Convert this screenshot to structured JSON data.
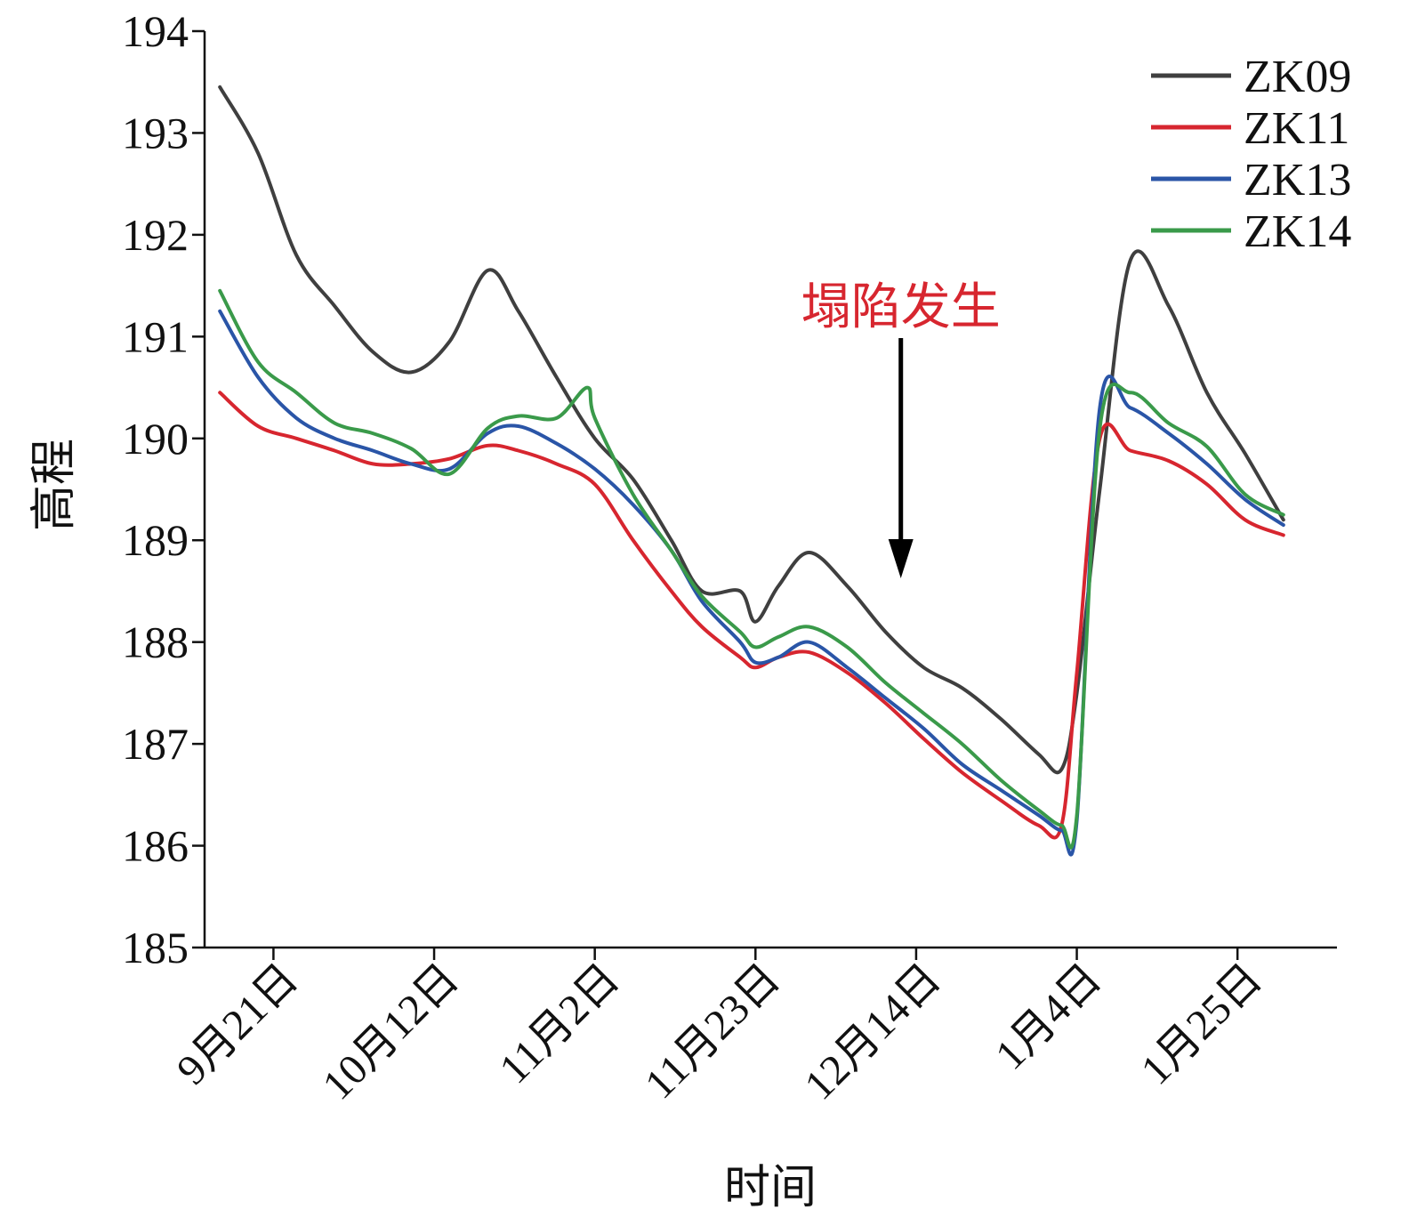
{
  "chart_data": {
    "type": "line",
    "xlabel": "时间",
    "ylabel": "高程",
    "ylim": [
      185,
      194
    ],
    "y_ticks": [
      185,
      186,
      187,
      188,
      189,
      190,
      191,
      192,
      193,
      194
    ],
    "xlim": [
      "2016-09-12",
      "2017-02-07"
    ],
    "x_tick_labels": [
      {
        "date": "2016-09-21",
        "label": "9月21日"
      },
      {
        "date": "2016-10-12",
        "label": "10月12日"
      },
      {
        "date": "2016-11-02",
        "label": "11月2日"
      },
      {
        "date": "2016-11-23",
        "label": "11月23日"
      },
      {
        "date": "2016-12-14",
        "label": "12月14日"
      },
      {
        "date": "2017-01-04",
        "label": "1月4日"
      },
      {
        "date": "2017-01-25",
        "label": "1月25日"
      }
    ],
    "legend_position": "top-right",
    "grid": false,
    "annotation": {
      "text": "塌陷发生",
      "date": "2016-12-12",
      "color": "#d7262f"
    },
    "series": [
      {
        "name": "ZK09",
        "color": "#3f3f3f",
        "x": [
          "2016-09-14",
          "2016-09-19",
          "2016-09-24",
          "2016-09-29",
          "2016-10-04",
          "2016-10-09",
          "2016-10-14",
          "2016-10-19",
          "2016-10-23",
          "2016-10-28",
          "2016-11-02",
          "2016-11-07",
          "2016-11-12",
          "2016-11-16",
          "2016-11-21",
          "2016-11-23",
          "2016-11-26",
          "2016-11-30",
          "2016-12-05",
          "2016-12-10",
          "2016-12-15",
          "2016-12-20",
          "2016-12-25",
          "2016-12-30",
          "2017-01-02",
          "2017-01-04",
          "2017-01-07",
          "2017-01-11",
          "2017-01-16",
          "2017-01-21",
          "2017-01-26",
          "2017-01-31"
        ],
        "y": [
          193.45,
          192.8,
          191.8,
          191.3,
          190.85,
          190.65,
          190.95,
          191.65,
          191.25,
          190.6,
          190.0,
          189.6,
          189.0,
          188.5,
          188.5,
          188.2,
          188.55,
          188.88,
          188.55,
          188.1,
          187.75,
          187.55,
          187.25,
          186.9,
          186.75,
          187.5,
          189.5,
          191.75,
          191.3,
          190.45,
          189.85,
          189.2
        ]
      },
      {
        "name": "ZK11",
        "color": "#d7262f",
        "x": [
          "2016-09-14",
          "2016-09-19",
          "2016-09-24",
          "2016-09-29",
          "2016-10-04",
          "2016-10-09",
          "2016-10-14",
          "2016-10-19",
          "2016-10-23",
          "2016-10-28",
          "2016-11-02",
          "2016-11-07",
          "2016-11-12",
          "2016-11-16",
          "2016-11-21",
          "2016-11-23",
          "2016-11-26",
          "2016-11-30",
          "2016-12-05",
          "2016-12-10",
          "2016-12-15",
          "2016-12-20",
          "2016-12-25",
          "2016-12-30",
          "2017-01-02",
          "2017-01-04",
          "2017-01-07",
          "2017-01-11",
          "2017-01-16",
          "2017-01-21",
          "2017-01-26",
          "2017-01-31"
        ],
        "y": [
          190.45,
          190.12,
          190.0,
          189.88,
          189.75,
          189.75,
          189.8,
          189.93,
          189.88,
          189.75,
          189.55,
          189.0,
          188.5,
          188.15,
          187.85,
          187.75,
          187.85,
          187.9,
          187.7,
          187.4,
          187.05,
          186.72,
          186.45,
          186.2,
          186.2,
          187.7,
          190.0,
          189.88,
          189.78,
          189.55,
          189.2,
          189.05
        ]
      },
      {
        "name": "ZK13",
        "color": "#2a55a7",
        "x": [
          "2016-09-14",
          "2016-09-19",
          "2016-09-24",
          "2016-09-29",
          "2016-10-04",
          "2016-10-09",
          "2016-10-14",
          "2016-10-19",
          "2016-10-23",
          "2016-10-28",
          "2016-11-02",
          "2016-11-07",
          "2016-11-12",
          "2016-11-16",
          "2016-11-21",
          "2016-11-23",
          "2016-11-26",
          "2016-11-30",
          "2016-12-05",
          "2016-12-10",
          "2016-12-15",
          "2016-12-20",
          "2016-12-25",
          "2016-12-30",
          "2017-01-02",
          "2017-01-04",
          "2017-01-07",
          "2017-01-11",
          "2017-01-16",
          "2017-01-21",
          "2017-01-26",
          "2017-01-31"
        ],
        "y": [
          191.25,
          190.6,
          190.2,
          190.0,
          189.88,
          189.75,
          189.7,
          190.05,
          190.12,
          189.95,
          189.7,
          189.35,
          188.9,
          188.4,
          188.0,
          187.8,
          187.85,
          188.0,
          187.75,
          187.45,
          187.15,
          186.8,
          186.55,
          186.3,
          186.15,
          186.25,
          190.3,
          190.3,
          190.05,
          189.75,
          189.4,
          189.15
        ]
      },
      {
        "name": "ZK14",
        "color": "#3a9a4a",
        "x": [
          "2016-09-14",
          "2016-09-19",
          "2016-09-24",
          "2016-09-29",
          "2016-10-04",
          "2016-10-09",
          "2016-10-14",
          "2016-10-19",
          "2016-10-23",
          "2016-10-28",
          "2016-11-01",
          "2016-11-02",
          "2016-11-07",
          "2016-11-12",
          "2016-11-16",
          "2016-11-21",
          "2016-11-23",
          "2016-11-26",
          "2016-11-30",
          "2016-12-05",
          "2016-12-10",
          "2016-12-15",
          "2016-12-20",
          "2016-12-25",
          "2016-12-30",
          "2017-01-02",
          "2017-01-04",
          "2017-01-07",
          "2017-01-11",
          "2017-01-16",
          "2017-01-21",
          "2017-01-26",
          "2017-01-31"
        ],
        "y": [
          191.45,
          190.75,
          190.45,
          190.15,
          190.05,
          189.9,
          189.65,
          190.1,
          190.22,
          190.2,
          190.5,
          190.2,
          189.45,
          188.9,
          188.45,
          188.1,
          187.95,
          188.05,
          188.15,
          187.95,
          187.6,
          187.3,
          187.0,
          186.65,
          186.35,
          186.2,
          186.3,
          190.1,
          190.45,
          190.15,
          189.92,
          189.45,
          189.25
        ]
      }
    ]
  }
}
